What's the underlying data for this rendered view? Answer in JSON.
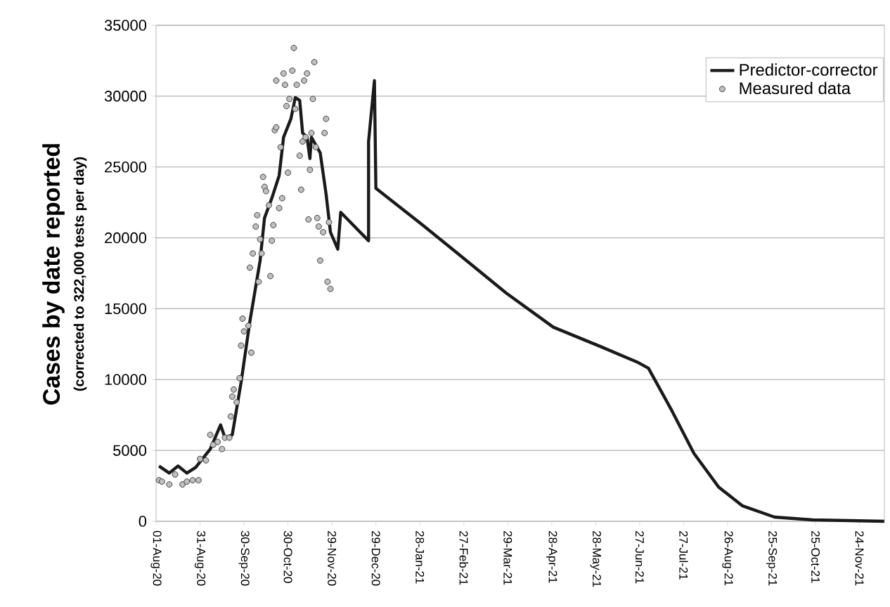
{
  "chart_data": {
    "type": "line",
    "ylabel": "Cases by date reported",
    "annotations": [
      "(corrected to 322,000 tests per day)"
    ],
    "xlim": [
      "2020-08-01",
      "2021-12-11"
    ],
    "xticks": [
      {
        "value": "2020-08-01",
        "label": "01-Aug-20"
      },
      {
        "value": "2020-08-31",
        "label": "31-Aug-20"
      },
      {
        "value": "2020-09-30",
        "label": "30-Sep-20"
      },
      {
        "value": "2020-10-30",
        "label": "30-Oct-20"
      },
      {
        "value": "2020-11-29",
        "label": "29-Nov-20"
      },
      {
        "value": "2020-12-29",
        "label": "29-Dec-20"
      },
      {
        "value": "2021-01-28",
        "label": "28-Jan-21"
      },
      {
        "value": "2021-02-27",
        "label": "27-Feb-21"
      },
      {
        "value": "2021-03-29",
        "label": "29-Mar-21"
      },
      {
        "value": "2021-04-28",
        "label": "28-Apr-21"
      },
      {
        "value": "2021-05-28",
        "label": "28-May-21"
      },
      {
        "value": "2021-06-27",
        "label": "27-Jun-21"
      },
      {
        "value": "2021-07-27",
        "label": "27-Jul-21"
      },
      {
        "value": "2021-08-26",
        "label": "26-Aug-21"
      },
      {
        "value": "2021-09-25",
        "label": "25-Sep-21"
      },
      {
        "value": "2021-10-25",
        "label": "25-Oct-21"
      },
      {
        "value": "2021-11-24",
        "label": "24-Nov-21"
      }
    ],
    "ylim": [
      0,
      35000
    ],
    "yticks": [
      0,
      5000,
      10000,
      15000,
      20000,
      25000,
      30000,
      35000
    ],
    "grid": "y",
    "legend": "top right",
    "series": [
      {
        "name": "Predictor-corrector",
        "marker": "none",
        "color": "#1a1a1a",
        "x": [
          "2020-08-03",
          "2020-08-10",
          "2020-08-16",
          "2020-08-22",
          "2020-08-28",
          "2020-09-07",
          "2020-09-14",
          "2020-09-17",
          "2020-09-22",
          "2020-09-28",
          "2020-10-04",
          "2020-10-11",
          "2020-10-14",
          "2020-10-19",
          "2020-10-24",
          "2020-10-27",
          "2020-11-01",
          "2020-11-04",
          "2020-11-07",
          "2020-11-09",
          "2020-11-12",
          "2020-11-14",
          "2020-11-15",
          "2020-11-21",
          "2020-11-25",
          "2020-11-28",
          "2020-12-03",
          "2020-12-05",
          "2020-12-24",
          "2020-12-24",
          "2020-12-28",
          "2020-12-29",
          "2021-01-30",
          "2021-02-24",
          "2021-03-28",
          "2021-04-29",
          "2021-06-01",
          "2021-06-26",
          "2021-07-03",
          "2021-07-19",
          "2021-08-03",
          "2021-08-20",
          "2021-09-05",
          "2021-09-27",
          "2021-10-23",
          "2021-12-11"
        ],
        "values": [
          3900,
          3400,
          3900,
          3400,
          3800,
          5100,
          6800,
          5900,
          6100,
          9800,
          14100,
          18400,
          21400,
          22800,
          24400,
          27100,
          28400,
          29900,
          29700,
          27400,
          27100,
          25600,
          27100,
          26000,
          23100,
          20400,
          19200,
          21800,
          19800,
          26800,
          31100,
          23500,
          20900,
          18800,
          16100,
          13700,
          12300,
          11200,
          10800,
          7800,
          4800,
          2400,
          1100,
          300,
          100,
          0
        ]
      },
      {
        "name": "Measured data",
        "type": "scatter",
        "marker": "circle",
        "color": "#bfbfbf",
        "x": [
          "2020-08-03",
          "2020-08-05",
          "2020-08-10",
          "2020-08-14",
          "2020-08-19",
          "2020-08-22",
          "2020-08-26",
          "2020-08-30",
          "2020-08-31",
          "2020-09-04",
          "2020-09-07",
          "2020-09-09",
          "2020-09-12",
          "2020-09-15",
          "2020-09-17",
          "2020-09-20",
          "2020-09-21",
          "2020-09-22",
          "2020-09-23",
          "2020-09-25",
          "2020-09-27",
          "2020-09-28",
          "2020-09-29",
          "2020-09-30",
          "2020-10-03",
          "2020-10-05",
          "2020-10-04",
          "2020-10-06",
          "2020-10-08",
          "2020-10-09",
          "2020-10-11",
          "2020-10-12",
          "2020-10-10",
          "2020-10-13",
          "2020-10-14",
          "2020-10-15",
          "2020-10-17",
          "2020-10-18",
          "2020-10-19",
          "2020-10-20",
          "2020-10-21",
          "2020-10-22",
          "2020-10-22",
          "2020-10-24",
          "2020-10-26",
          "2020-10-25",
          "2020-10-27",
          "2020-10-28",
          "2020-10-29",
          "2020-10-30",
          "2020-10-31",
          "2020-11-02",
          "2020-11-03",
          "2020-11-04",
          "2020-11-05",
          "2020-11-07",
          "2020-11-08",
          "2020-11-09",
          "2020-11-10",
          "2020-11-11",
          "2020-11-12",
          "2020-11-13",
          "2020-11-14",
          "2020-11-15",
          "2020-11-16",
          "2020-11-17",
          "2020-11-18",
          "2020-11-19",
          "2020-11-20",
          "2020-11-21",
          "2020-11-23",
          "2020-11-24",
          "2020-11-25",
          "2020-11-26",
          "2020-11-27",
          "2020-11-28"
        ],
        "values": [
          2900,
          2800,
          2600,
          3300,
          2600,
          2800,
          2900,
          2900,
          4400,
          4300,
          6100,
          5400,
          5600,
          5100,
          5900,
          5900,
          7400,
          8800,
          9300,
          8400,
          10100,
          12400,
          14300,
          13400,
          13800,
          11900,
          17900,
          18900,
          20800,
          21600,
          19900,
          18900,
          16900,
          24300,
          23600,
          23300,
          22300,
          17300,
          19800,
          20900,
          27600,
          27800,
          31100,
          22100,
          22800,
          26400,
          31600,
          30800,
          29300,
          24600,
          29800,
          31800,
          33400,
          29100,
          30800,
          25800,
          23400,
          26800,
          31100,
          27100,
          31600,
          21300,
          24800,
          27400,
          29800,
          32400,
          26400,
          21400,
          20800,
          18400,
          20400,
          27400,
          28400,
          16900,
          21100,
          16400
        ]
      }
    ]
  }
}
